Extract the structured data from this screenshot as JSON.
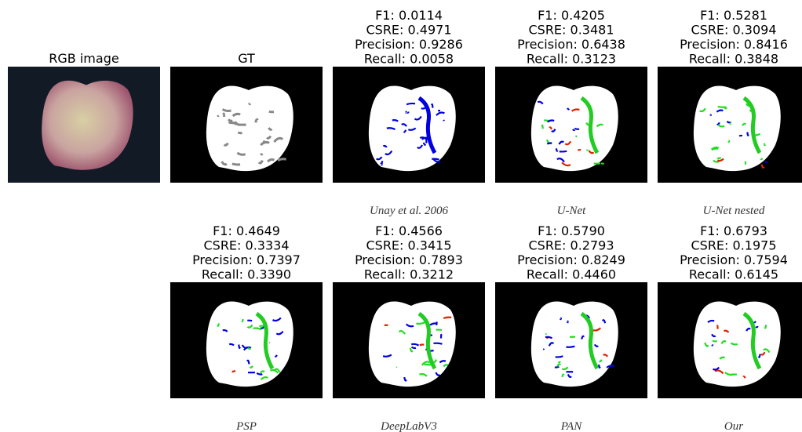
{
  "row1": [
    {
      "label": "RGB image"
    },
    {
      "label": "GT"
    },
    {
      "metrics": [
        "F1: 0.0114",
        "CSRE: 0.4971",
        "Precision: 0.9286",
        "Recall: 0.0058"
      ],
      "caption": "Unay et al. 2006"
    },
    {
      "metrics": [
        "F1: 0.4205",
        "CSRE: 0.3481",
        "Precision: 0.6438",
        "Recall: 0.3123"
      ],
      "caption": "U-Net"
    },
    {
      "metrics": [
        "F1: 0.5281",
        "CSRE: 0.3094",
        "Precision: 0.8416",
        "Recall: 0.3848"
      ],
      "caption": "U-Net nested"
    }
  ],
  "row2": [
    {
      "metrics": [
        "F1: 0.4649",
        "CSRE: 0.3334",
        "Precision: 0.7397",
        "Recall: 0.3390"
      ],
      "caption": "PSP"
    },
    {
      "metrics": [
        "F1: 0.4566",
        "CSRE: 0.3415",
        "Precision: 0.7893",
        "Recall: 0.3212"
      ],
      "caption": "DeepLabV3"
    },
    {
      "metrics": [
        "F1: 0.5790",
        "CSRE: 0.2793",
        "Precision: 0.8249",
        "Recall: 0.4460"
      ],
      "caption": "PAN"
    },
    {
      "metrics": [
        "F1: 0.6793",
        "CSRE: 0.1975",
        "Precision: 0.7594",
        "Recall: 0.6145"
      ],
      "caption": "Our"
    }
  ]
}
